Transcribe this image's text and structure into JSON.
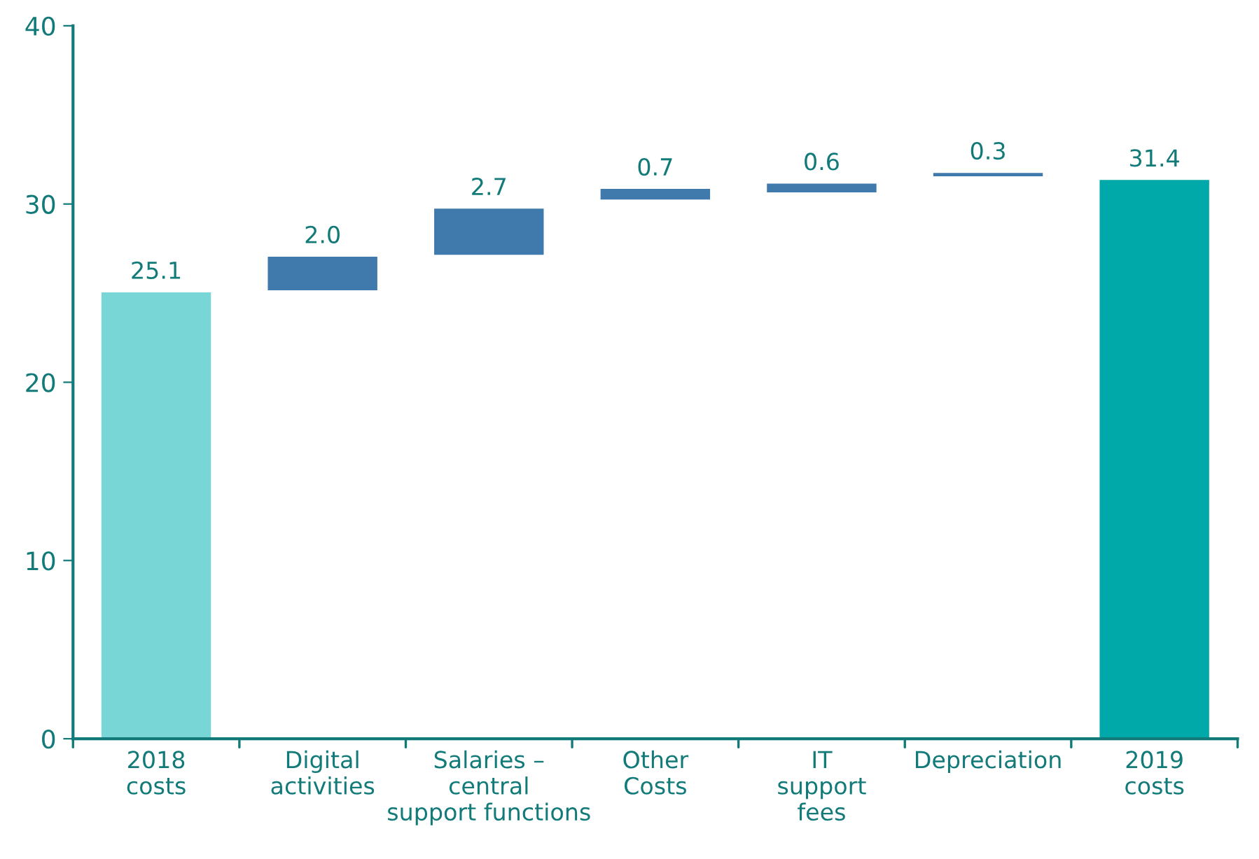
{
  "chart_data": {
    "type": "bar",
    "categories": [
      "2018\ncosts",
      "Digital\nactivities",
      "Salaries –\ncentral\nsupport functions",
      "Other\nCosts",
      "IT\nsupport\nfees",
      "Depreciation",
      "2019\ncosts"
    ],
    "values": [
      25.1,
      2.0,
      2.7,
      0.7,
      0.6,
      0.3,
      31.4
    ],
    "base": [
      0,
      25.1,
      27.1,
      30.2,
      30.6,
      31.5,
      0
    ],
    "colors": [
      "#79d6d6",
      "#4079ab",
      "#4079ab",
      "#4079ab",
      "#4079ab",
      "#4079ab",
      "#00a9a9"
    ],
    "ylim": [
      0,
      40
    ],
    "yticks": [
      0,
      10,
      20,
      30,
      40
    ],
    "value_labels": [
      "25.1",
      "2.0",
      "2.7",
      "0.7",
      "0.6",
      "0.3",
      "31.4"
    ],
    "grid": false,
    "legend": false
  }
}
